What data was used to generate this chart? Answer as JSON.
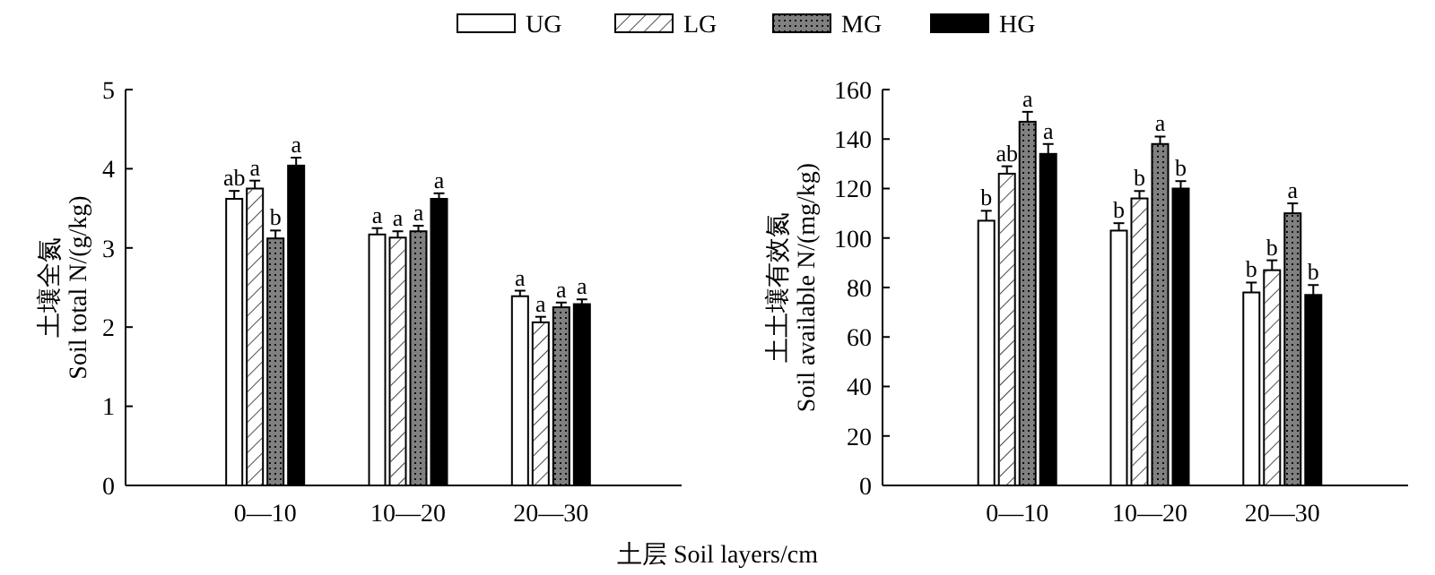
{
  "chart_data": [
    {
      "type": "bar",
      "xlabel": "土层 Soil layers/cm",
      "ylabel": "土壤全氮\nSoil total N/(g/kg)",
      "categories": [
        "0—10",
        "10—20",
        "20—30"
      ],
      "ylim": [
        0,
        5
      ],
      "yticks": [
        0,
        1,
        2,
        3,
        4,
        5
      ],
      "legend": "top",
      "grid": false,
      "series": [
        {
          "name": "UG",
          "color": "#ffffff",
          "values": [
            3.62,
            3.17,
            2.39
          ],
          "errors": [
            0.1,
            0.08,
            0.07
          ],
          "value_labels": [
            "ab",
            "a",
            "a"
          ]
        },
        {
          "name": "LG",
          "color": "#ffffff",
          "values": [
            3.75,
            3.13,
            2.06
          ],
          "errors": [
            0.1,
            0.08,
            0.07
          ],
          "value_labels": [
            "a",
            "a",
            "a"
          ]
        },
        {
          "name": "MG",
          "color": "#808080",
          "values": [
            3.12,
            3.21,
            2.25
          ],
          "errors": [
            0.1,
            0.07,
            0.06
          ],
          "value_labels": [
            "b",
            "a",
            "a"
          ]
        },
        {
          "name": "HG",
          "color": "#000000",
          "values": [
            4.04,
            3.62,
            2.29
          ],
          "errors": [
            0.1,
            0.07,
            0.06
          ],
          "value_labels": [
            "a",
            "a",
            "a"
          ]
        }
      ]
    },
    {
      "type": "bar",
      "ylabel": "土土壤有效氮\nSoil available N/(mg/kg)",
      "categories": [
        "0—10",
        "10—20",
        "20—30"
      ],
      "ylim": [
        0,
        160
      ],
      "yticks": [
        0,
        20,
        40,
        60,
        80,
        100,
        120,
        140,
        160
      ],
      "grid": false,
      "series": [
        {
          "color": "#ffffff",
          "values": [
            107,
            103,
            78
          ],
          "errors": [
            4,
            3,
            4
          ],
          "value_labels": [
            "b",
            "b",
            "b"
          ]
        },
        {
          "color": "#ffffff",
          "values": [
            126,
            116,
            87
          ],
          "errors": [
            3,
            3,
            4
          ],
          "value_labels": [
            "ab",
            "b",
            "b"
          ]
        },
        {
          "color": "#808080",
          "values": [
            147,
            138,
            110
          ],
          "errors": [
            4,
            3,
            4
          ],
          "value_labels": [
            "a",
            "a",
            "a"
          ]
        },
        {
          "color": "#000000",
          "values": [
            134,
            120,
            77
          ],
          "errors": [
            4,
            3,
            4
          ],
          "value_labels": [
            "a",
            "b",
            "b"
          ]
        }
      ]
    }
  ]
}
